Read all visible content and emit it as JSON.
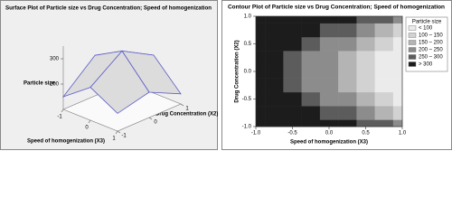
{
  "chart_data": [
    {
      "type": "surface",
      "title": "Surface Plot of Particle size vs Drug Concentration; Speed of homogenization",
      "xlabel": "Speed of homogenization (X3)",
      "ylabel": "Drug Concentration (X2)",
      "zlabel": "Particle size",
      "x": [
        -1,
        0,
        1
      ],
      "y": [
        -1,
        0,
        1
      ],
      "z": [
        [
          150,
          230,
          170
        ],
        [
          260,
          320,
          200
        ],
        [
          180,
          250,
          140
        ]
      ],
      "xticks": [
        -1,
        0,
        1
      ],
      "yticks": [
        -1,
        0,
        1
      ],
      "zlim": [
        100,
        350
      ],
      "zticks": [
        200,
        300
      ],
      "color": "#dcdcdc",
      "line_color": "#5a5ac8"
    },
    {
      "type": "contour",
      "title": "Contour Plot of Particle size vs Drug Concentration; Speed of homogenization",
      "xlabel": "Speed of homogenization (X3)",
      "ylabel": "Drug Concentration (X2)",
      "x": [
        -1,
        -0.75,
        -0.5,
        -0.25,
        0,
        0.25,
        0.5,
        0.75,
        1
      ],
      "y": [
        -1,
        -0.75,
        -0.5,
        -0.25,
        0,
        0.25,
        0.5,
        0.75,
        1
      ],
      "z": [
        [
          515,
          478,
          440,
          403,
          365,
          328,
          290,
          253,
          215
        ],
        [
          443,
          405,
          368,
          330,
          293,
          255,
          218,
          180,
          143
        ],
        [
          391,
          354,
          316,
          279,
          241,
          204,
          166,
          129,
          91
        ],
        [
          360,
          323,
          285,
          248,
          210,
          173,
          135,
          98,
          60
        ],
        [
          350,
          313,
          275,
          238,
          200,
          163,
          125,
          88,
          50
        ],
        [
          360,
          323,
          285,
          248,
          210,
          173,
          135,
          98,
          60
        ],
        [
          391,
          354,
          316,
          279,
          241,
          204,
          166,
          129,
          91
        ],
        [
          443,
          405,
          368,
          330,
          293,
          255,
          218,
          180,
          143
        ],
        [
          515,
          478,
          440,
          403,
          365,
          328,
          290,
          253,
          215
        ]
      ],
      "xlim": [
        -1,
        1
      ],
      "ylim": [
        -1,
        1
      ],
      "xticks": [
        {
          "value": -1,
          "label": "-1.0"
        },
        {
          "value": -0.5,
          "label": "-0.5"
        },
        {
          "value": 0,
          "label": "0.0"
        },
        {
          "value": 0.5,
          "label": "0.5"
        },
        {
          "value": 1,
          "label": "1.0"
        }
      ],
      "yticks": [
        {
          "value": -1,
          "label": "-1.0"
        },
        {
          "value": -0.5,
          "label": "-0.5"
        },
        {
          "value": 0,
          "label": "0.0"
        },
        {
          "value": 0.5,
          "label": "0.5"
        },
        {
          "value": 1,
          "label": "1.0"
        }
      ],
      "legend_title": "Particle size",
      "levels": [
        100,
        150,
        200,
        250,
        300
      ],
      "level_labels": [
        "< 100",
        "100 – 150",
        "150 – 200",
        "200 – 250",
        "250 – 300",
        "> 300"
      ],
      "colors": [
        "#ebebeb",
        "#d2d2d2",
        "#b4b4b4",
        "#8c8c8c",
        "#5c5c5c",
        "#1c1c1c"
      ]
    }
  ]
}
